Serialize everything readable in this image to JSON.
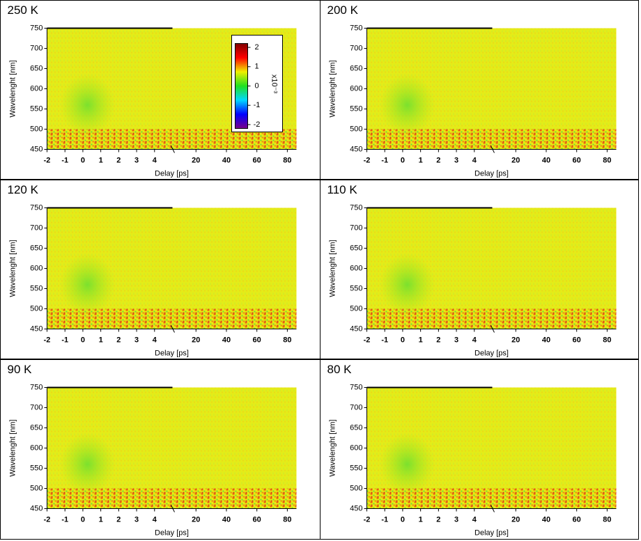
{
  "chart_data": [
    {
      "type": "heatmap",
      "title": "250 K",
      "xlabel": "Delay [ps]",
      "ylabel": "Wavelenght [nm]",
      "x_segments": [
        {
          "xlim": [
            -2,
            5
          ],
          "xticks": [
            -2,
            -1,
            0,
            1,
            2,
            3,
            4
          ]
        },
        {
          "xlim": [
            5,
            86
          ],
          "xticks": [
            20,
            40,
            60,
            80
          ]
        }
      ],
      "ylim": [
        450,
        750
      ],
      "yticks": [
        450,
        500,
        550,
        600,
        650,
        700,
        750
      ],
      "colorbar": {
        "lim": [
          -2.2,
          2.2
        ],
        "ticks": [
          -2,
          -1,
          0,
          1,
          2
        ],
        "label": "x10⁻³",
        "colors": [
          "#7a008a",
          "#0000ff",
          "#00d8ff",
          "#20e020",
          "#f0f000",
          "#ff0000",
          "#800000"
        ]
      }
    },
    {
      "type": "heatmap",
      "title": "200 K",
      "xlabel": "Delay [ps]",
      "ylabel": "Wavelenght [nm]",
      "x_segments": [
        {
          "xlim": [
            -2,
            5
          ],
          "xticks": [
            -2,
            -1,
            0,
            1,
            2,
            3,
            4
          ]
        },
        {
          "xlim": [
            5,
            86
          ],
          "xticks": [
            20,
            40,
            60,
            80
          ]
        }
      ],
      "ylim": [
        450,
        750
      ],
      "yticks": [
        450,
        500,
        550,
        600,
        650,
        700,
        750
      ]
    },
    {
      "type": "heatmap",
      "title": "120 K",
      "xlabel": "Delay [ps]",
      "ylabel": "Wavelenght [nm]",
      "x_segments": [
        {
          "xlim": [
            -2,
            5
          ],
          "xticks": [
            -2,
            -1,
            0,
            1,
            2,
            3,
            4
          ]
        },
        {
          "xlim": [
            5,
            86
          ],
          "xticks": [
            20,
            40,
            60,
            80
          ]
        }
      ],
      "ylim": [
        450,
        750
      ],
      "yticks": [
        450,
        500,
        550,
        600,
        650,
        700,
        750
      ]
    },
    {
      "type": "heatmap",
      "title": "110 K",
      "xlabel": "Delay [ps]",
      "ylabel": "Wavelenght [nm]",
      "x_segments": [
        {
          "xlim": [
            -2,
            5
          ],
          "xticks": [
            -2,
            -1,
            0,
            1,
            2,
            3,
            4
          ]
        },
        {
          "xlim": [
            5,
            86
          ],
          "xticks": [
            20,
            40,
            60,
            80
          ]
        }
      ],
      "ylim": [
        450,
        750
      ],
      "yticks": [
        450,
        500,
        550,
        600,
        650,
        700,
        750
      ]
    },
    {
      "type": "heatmap",
      "title": "90 K",
      "xlabel": "Delay [ps]",
      "ylabel": "Wavelenght [nm]",
      "x_segments": [
        {
          "xlim": [
            -2,
            5
          ],
          "xticks": [
            -2,
            -1,
            0,
            1,
            2,
            3,
            4
          ]
        },
        {
          "xlim": [
            5,
            86
          ],
          "xticks": [
            20,
            40,
            60,
            80
          ]
        }
      ],
      "ylim": [
        450,
        750
      ],
      "yticks": [
        450,
        500,
        550,
        600,
        650,
        700,
        750
      ]
    },
    {
      "type": "heatmap",
      "title": "80 K",
      "xlabel": "Delay [ps]",
      "ylabel": "Wavelenght [nm]",
      "x_segments": [
        {
          "xlim": [
            -2,
            5
          ],
          "xticks": [
            -2,
            -1,
            0,
            1,
            2,
            3,
            4
          ]
        },
        {
          "xlim": [
            5,
            86
          ],
          "xticks": [
            20,
            40,
            60,
            80
          ]
        }
      ],
      "ylim": [
        450,
        750
      ],
      "yticks": [
        450,
        500,
        550,
        600,
        650,
        700,
        750
      ]
    }
  ]
}
